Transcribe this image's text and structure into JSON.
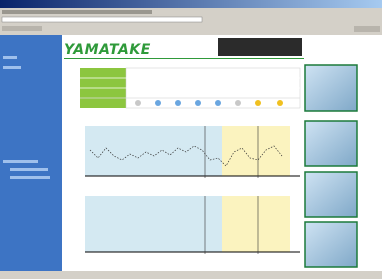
{
  "header": {
    "logo": "YAMATAKE"
  }
}
